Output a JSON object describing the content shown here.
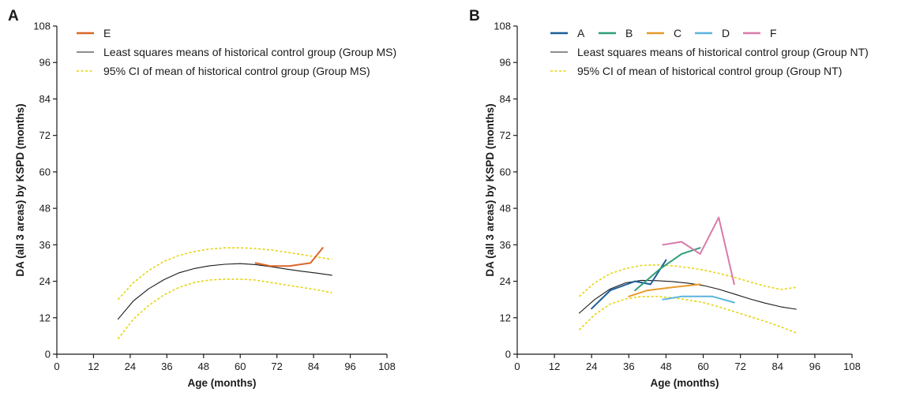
{
  "chart_data": [
    {
      "panel_label": "A",
      "type": "line",
      "xlabel": "Age (months)",
      "ylabel": "DA (all 3 areas) by KSPD (months)",
      "xlim": [
        0,
        108
      ],
      "ylim": [
        0,
        108
      ],
      "xticks": [
        0,
        12,
        24,
        36,
        48,
        60,
        72,
        84,
        96,
        108
      ],
      "yticks": [
        0,
        12,
        24,
        36,
        48,
        60,
        72,
        84,
        96,
        108
      ],
      "grid": false,
      "legend_position": "top-left",
      "series": [
        {
          "name": "E",
          "role": "patient",
          "color": "#d9662a",
          "dash": "solid",
          "x": [
            65,
            70,
            76,
            83,
            87
          ],
          "y": [
            30,
            29,
            29,
            30,
            35
          ]
        },
        {
          "name": "Least squares means of historical control group (Group MS)",
          "role": "mean",
          "color": "#1a1a1a",
          "dash": "solid",
          "x": [
            20,
            25,
            30,
            35,
            40,
            45,
            50,
            55,
            60,
            65,
            70,
            75,
            80,
            85,
            90
          ],
          "y": [
            11.5,
            17.5,
            21.5,
            24.5,
            26.8,
            28.2,
            29.1,
            29.6,
            29.8,
            29.5,
            28.8,
            28.0,
            27.3,
            26.7,
            26.0
          ]
        },
        {
          "name": "95% CI of mean of historical control group (Group MS)",
          "role": "ci",
          "color": "#e6d40f",
          "dash": "dashed",
          "x": [
            20,
            25,
            30,
            35,
            40,
            45,
            50,
            55,
            60,
            65,
            70,
            75,
            80,
            85,
            90
          ],
          "y": [
            18,
            23.5,
            27.5,
            30.5,
            32.5,
            33.8,
            34.6,
            35.0,
            35.0,
            34.8,
            34.3,
            33.6,
            32.8,
            32.0,
            31.2
          ]
        },
        {
          "name": "",
          "role": "ci",
          "color": "#e6d40f",
          "dash": "dashed",
          "x": [
            20,
            25,
            30,
            35,
            40,
            45,
            50,
            55,
            60,
            65,
            70,
            75,
            80,
            85,
            90
          ],
          "y": [
            5,
            11.5,
            16,
            19.5,
            22,
            23.6,
            24.4,
            24.7,
            24.7,
            24.4,
            23.6,
            22.8,
            22.0,
            21.2,
            20.2
          ]
        }
      ]
    },
    {
      "panel_label": "B",
      "type": "line",
      "xlabel": "Age (months)",
      "ylabel": "DA (all 3 areas) by KSPD (months)",
      "xlim": [
        0,
        108
      ],
      "ylim": [
        0,
        108
      ],
      "xticks": [
        0,
        12,
        24,
        36,
        48,
        60,
        72,
        84,
        96,
        108
      ],
      "yticks": [
        0,
        12,
        24,
        36,
        48,
        60,
        72,
        84,
        96,
        108
      ],
      "grid": false,
      "legend_position": "top-left",
      "series": [
        {
          "name": "A",
          "role": "patient",
          "color": "#1a5e9b",
          "dash": "solid",
          "x": [
            24,
            30,
            38,
            43,
            48
          ],
          "y": [
            15,
            21,
            24,
            23,
            31
          ]
        },
        {
          "name": "B",
          "role": "patient",
          "color": "#2e9e78",
          "dash": "solid",
          "x": [
            38,
            46,
            53,
            59
          ],
          "y": [
            21,
            28,
            33,
            35
          ]
        },
        {
          "name": "C",
          "role": "patient",
          "color": "#e89a2a",
          "dash": "solid",
          "x": [
            36,
            42,
            50,
            59
          ],
          "y": [
            19,
            21,
            22,
            23
          ]
        },
        {
          "name": "D",
          "role": "patient",
          "color": "#5ab4de",
          "dash": "solid",
          "x": [
            47,
            53,
            63,
            70
          ],
          "y": [
            18,
            19,
            19,
            17
          ]
        },
        {
          "name": "F",
          "role": "patient",
          "color": "#d97aa8",
          "dash": "solid",
          "x": [
            47,
            53,
            59,
            65,
            70
          ],
          "y": [
            36,
            37,
            33,
            45,
            23
          ]
        },
        {
          "name": "Least squares means of historical control group (Group NT)",
          "role": "mean",
          "color": "#1a1a1a",
          "dash": "solid",
          "x": [
            20,
            25,
            30,
            35,
            40,
            45,
            50,
            55,
            60,
            65,
            70,
            75,
            80,
            85,
            90
          ],
          "y": [
            13.5,
            18,
            21.5,
            23.5,
            24.3,
            24.2,
            23.9,
            23.4,
            22.6,
            21.4,
            19.8,
            18.2,
            16.8,
            15.6,
            14.8
          ]
        },
        {
          "name": "95% CI of mean of historical control group (Group NT)",
          "role": "ci",
          "color": "#e6d40f",
          "dash": "dashed",
          "x": [
            20,
            25,
            30,
            35,
            40,
            45,
            50,
            55,
            60,
            65,
            70,
            75,
            80,
            85,
            90
          ],
          "y": [
            19,
            23.5,
            26.5,
            28.2,
            29.2,
            29.4,
            29.1,
            28.5,
            27.7,
            26.6,
            25.3,
            23.8,
            22.4,
            21.3,
            22.0
          ]
        },
        {
          "name": "",
          "role": "ci",
          "color": "#e6d40f",
          "dash": "dashed",
          "x": [
            20,
            25,
            30,
            35,
            40,
            45,
            50,
            55,
            60,
            65,
            70,
            75,
            80,
            85,
            90
          ],
          "y": [
            8,
            13,
            16.5,
            18.2,
            19.0,
            19.0,
            18.6,
            17.9,
            17.0,
            15.6,
            14.0,
            12.4,
            10.8,
            9.0,
            7.0
          ]
        }
      ]
    }
  ]
}
